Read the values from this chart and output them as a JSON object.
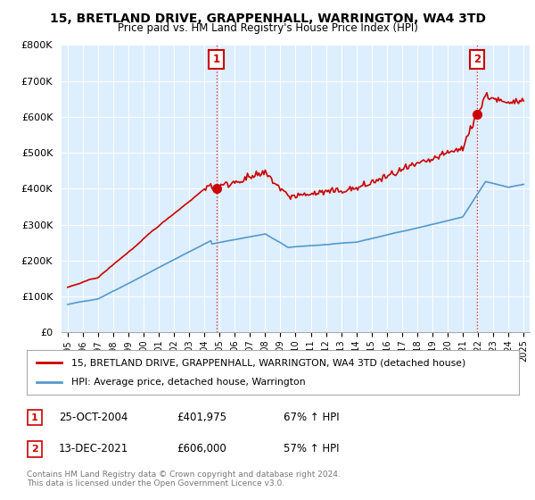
{
  "title": "15, BRETLAND DRIVE, GRAPPENHALL, WARRINGTON, WA4 3TD",
  "subtitle": "Price paid vs. HM Land Registry's House Price Index (HPI)",
  "hpi_label": "HPI: Average price, detached house, Warrington",
  "property_label": "15, BRETLAND DRIVE, GRAPPENHALL, WARRINGTON, WA4 3TD (detached house)",
  "transaction1_date": "25-OCT-2004",
  "transaction1_price": 401975,
  "transaction1_hpi": "67% ↑ HPI",
  "transaction2_date": "13-DEC-2021",
  "transaction2_price": 606000,
  "transaction2_hpi": "57% ↑ HPI",
  "copyright": "Contains HM Land Registry data © Crown copyright and database right 2024.\nThis data is licensed under the Open Government Licence v3.0.",
  "property_color": "#cc0000",
  "hpi_color": "#5599cc",
  "chart_bg": "#ddeeff",
  "fig_bg": "#ffffff",
  "ylim": [
    0,
    800000
  ],
  "yticks": [
    0,
    100000,
    200000,
    300000,
    400000,
    500000,
    600000,
    700000,
    800000
  ],
  "t1": 2004.79,
  "t2": 2021.95,
  "price1": 401975,
  "price2": 606000
}
